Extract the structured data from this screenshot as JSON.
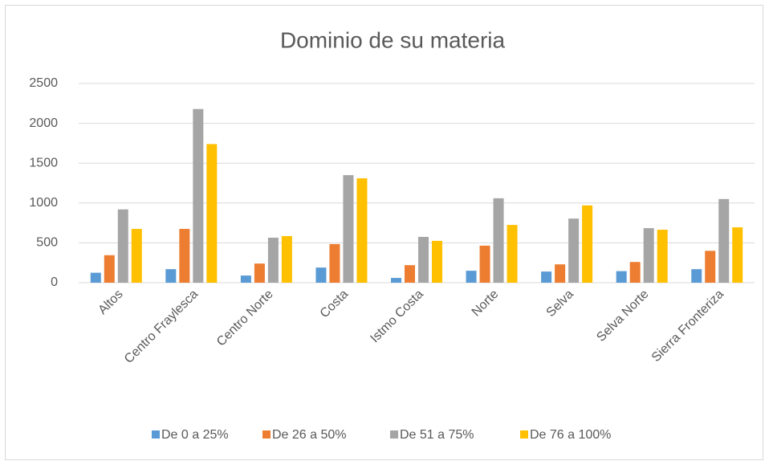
{
  "chart_data": {
    "type": "bar",
    "title": "Dominio de su materia",
    "categories": [
      "Altos",
      "Centro Fraylesca",
      "Centro Norte",
      "Costa",
      "Istmo Costa",
      "Norte",
      "Selva",
      "Selva Norte",
      "Sierra Fronteriza"
    ],
    "series": [
      {
        "name": "De 0 a 25%",
        "color": "#5b9bd5",
        "values": [
          125,
          170,
          90,
          190,
          60,
          150,
          140,
          145,
          170
        ]
      },
      {
        "name": "De 26 a 50%",
        "color": "#ed7d31",
        "values": [
          345,
          675,
          240,
          485,
          220,
          465,
          230,
          260,
          400
        ]
      },
      {
        "name": "De 51 a 75%",
        "color": "#a5a5a5",
        "values": [
          920,
          2180,
          565,
          1350,
          575,
          1060,
          805,
          685,
          1050
        ]
      },
      {
        "name": "De 76 a 100%",
        "color": "#ffc000",
        "values": [
          675,
          1740,
          585,
          1310,
          525,
          725,
          970,
          665,
          695
        ]
      }
    ],
    "ylim": [
      0,
      2500
    ],
    "yticks": [
      0,
      500,
      1000,
      1500,
      2000,
      2500
    ],
    "grid": true,
    "legend": "bottom"
  }
}
